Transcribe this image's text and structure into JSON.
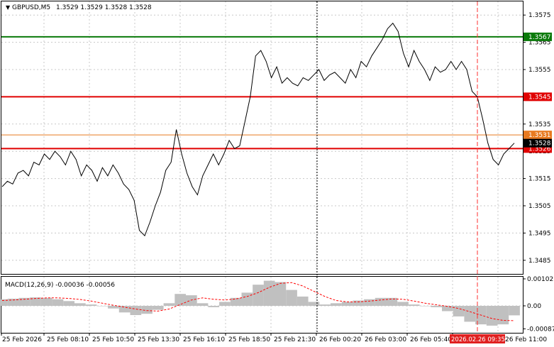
{
  "header": {
    "symbol": "GBPUSD,M5",
    "ohlc": "1.3529 1.3529 1.3528 1.3528"
  },
  "macd": {
    "label": "MACD(12,26,9) -0.00036 -0.00056",
    "ticks": [
      "0.00102",
      "0.00",
      "-0.00087"
    ]
  },
  "price_axis": {
    "ticks": [
      "1.3575",
      "1.3565",
      "1.3555",
      "1.3545",
      "1.3535",
      "1.3525",
      "1.3515",
      "1.3505",
      "1.3495",
      "1.3485"
    ],
    "current_price": "1.3528"
  },
  "levels": [
    {
      "name": "green-level",
      "price": 1.3567,
      "label": "1.3567",
      "color": "#0a7a0a"
    },
    {
      "name": "red-level-upper",
      "price": 1.3545,
      "label": "1.3545",
      "color": "#e00000"
    },
    {
      "name": "orange-level",
      "price": 1.3531,
      "label": "1.3531",
      "color": "#e87a20"
    },
    {
      "name": "red-level-lower",
      "price": 1.3526,
      "label": "1.3526",
      "color": "#e00000"
    }
  ],
  "time_axis": {
    "labels": [
      "25 Feb 2026",
      "25 Feb 08:10",
      "25 Feb 10:50",
      "25 Feb 13:30",
      "25 Feb 16:10",
      "25 Feb 18:50",
      "25 Feb 21:30",
      "26 Feb 00:20",
      "26 Feb 03:00",
      "26 Feb 05:40",
      "26 Feb 11:00"
    ],
    "cursor_time": "2026.02.26 09:35"
  },
  "colors": {
    "price_line": "#000000",
    "macd_hist": "#c0c0c0",
    "macd_signal": "#ff0000",
    "grid": "#c8c8c8",
    "cursor": "#ff3030",
    "current_price_bg": "#000000"
  },
  "chart_data": {
    "type": "line",
    "title": "GBPUSD,M5",
    "price_series": [
      1.3512,
      1.3514,
      1.3513,
      1.3517,
      1.3518,
      1.3516,
      1.3521,
      1.352,
      1.3524,
      1.3522,
      1.3525,
      1.3523,
      1.352,
      1.3525,
      1.3522,
      1.3516,
      1.352,
      1.3518,
      1.3514,
      1.3519,
      1.3516,
      1.352,
      1.3517,
      1.3513,
      1.3511,
      1.3507,
      1.3496,
      1.3494,
      1.3499,
      1.3505,
      1.351,
      1.3518,
      1.3521,
      1.3533,
      1.3524,
      1.3517,
      1.3512,
      1.3509,
      1.3516,
      1.352,
      1.3524,
      1.352,
      1.3524,
      1.3529,
      1.3526,
      1.3527,
      1.3536,
      1.3545,
      1.356,
      1.3562,
      1.3558,
      1.3552,
      1.3556,
      1.355,
      1.3552,
      1.355,
      1.3549,
      1.3552,
      1.3551,
      1.3553,
      1.3555,
      1.3551,
      1.3553,
      1.3554,
      1.3552,
      1.355,
      1.3555,
      1.3552,
      1.3558,
      1.3556,
      1.356,
      1.3563,
      1.3566,
      1.357,
      1.3572,
      1.3569,
      1.3561,
      1.3556,
      1.3562,
      1.3558,
      1.3555,
      1.3551,
      1.3556,
      1.3554,
      1.3555,
      1.3558,
      1.3555,
      1.3558,
      1.3555,
      1.3547,
      1.3545,
      1.3537,
      1.3528,
      1.3522,
      1.352,
      1.3524,
      1.3526,
      1.3528
    ],
    "macd_hist": [
      0.00025,
      0.00027,
      0.0003,
      0.00032,
      0.0003,
      0.00025,
      0.00018,
      0.0001,
      5e-05,
      0.0,
      -0.0001,
      -0.00025,
      -0.00035,
      -0.0003,
      -0.00015,
      0.0001,
      0.00045,
      0.0004,
      0.0001,
      -5e-05,
      0.00015,
      0.0003,
      0.0005,
      0.0008,
      0.00095,
      0.0009,
      0.0006,
      0.00035,
      0.00015,
      5e-05,
      0.0001,
      0.00015,
      0.0002,
      0.00025,
      0.0003,
      0.0003,
      0.00015,
      5e-05,
      0.0,
      -5e-05,
      -0.0002,
      -0.0004,
      -0.0006,
      -0.0007,
      -0.00075,
      -0.0007,
      -0.00036
    ],
    "macd_signal": [
      0.0002,
      0.00022,
      0.00025,
      0.00028,
      0.0003,
      0.0003,
      0.00028,
      0.00024,
      0.00018,
      0.0001,
      2e-05,
      -5e-05,
      -0.00012,
      -0.00018,
      -0.0002,
      -0.00012,
      5e-05,
      0.00022,
      0.0003,
      0.00025,
      0.00022,
      0.00026,
      0.00035,
      0.0005,
      0.0007,
      0.00085,
      0.00088,
      0.00075,
      0.00055,
      0.00035,
      0.0002,
      0.00015,
      0.00015,
      0.00018,
      0.00022,
      0.00026,
      0.00025,
      0.00018,
      0.0001,
      4e-05,
      -2e-05,
      -0.0001,
      -0.00022,
      -0.00035,
      -0.00048,
      -0.00055,
      -0.00056
    ],
    "ylim_price": [
      1.348,
      1.358
    ],
    "ylim_macd": [
      -0.00102,
      0.0011
    ],
    "grid": true
  }
}
